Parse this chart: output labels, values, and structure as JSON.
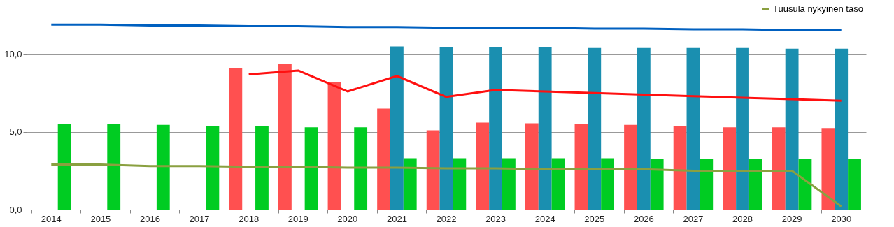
{
  "chart_data": {
    "type": "bar",
    "categories": [
      "2014",
      "2015",
      "2016",
      "2017",
      "2018",
      "2019",
      "2020",
      "2021",
      "2022",
      "2023",
      "2024",
      "2025",
      "2026",
      "2027",
      "2028",
      "2029",
      "2030"
    ],
    "series": [
      {
        "color": "#ff5050",
        "values": [
          null,
          null,
          null,
          null,
          9.1,
          9.4,
          8.2,
          6.5,
          5.1,
          5.6,
          5.55,
          5.5,
          5.45,
          5.4,
          5.3,
          5.3,
          5.25
        ]
      },
      {
        "color": "#1a8fb0",
        "values": [
          null,
          null,
          null,
          null,
          null,
          null,
          null,
          10.5,
          10.45,
          10.45,
          10.45,
          10.4,
          10.4,
          10.4,
          10.4,
          10.35,
          10.35
        ]
      },
      {
        "color": "#00cc22",
        "values": [
          5.5,
          5.5,
          5.45,
          5.4,
          5.35,
          5.3,
          5.3,
          3.3,
          3.3,
          3.3,
          3.3,
          3.3,
          3.25,
          3.25,
          3.25,
          3.25,
          3.25
        ]
      },
      {
        "type": "line",
        "color": "#0060c0",
        "values": [
          11.9,
          11.9,
          11.85,
          11.85,
          11.8,
          11.8,
          11.75,
          11.75,
          11.7,
          11.7,
          11.7,
          11.65,
          11.65,
          11.6,
          11.6,
          11.55,
          11.55
        ]
      },
      {
        "type": "line",
        "color": "#ff1010",
        "values": [
          null,
          null,
          null,
          null,
          8.7,
          8.95,
          7.6,
          8.6,
          7.25,
          7.7,
          7.6,
          7.5,
          7.4,
          7.3,
          7.2,
          7.1,
          7.0
        ]
      },
      {
        "type": "line",
        "name": "Tuusula nykyinen taso",
        "color": "#8aa040",
        "values": [
          2.9,
          2.9,
          2.8,
          2.8,
          2.75,
          2.75,
          2.7,
          2.7,
          2.65,
          2.65,
          2.6,
          2.6,
          2.6,
          2.5,
          2.5,
          2.5,
          0.2
        ]
      }
    ],
    "ylim": [
      0,
      13.4
    ],
    "yticks": [
      {
        "value": 0,
        "label": "0,0"
      },
      {
        "value": 5,
        "label": "5,0"
      },
      {
        "value": 10,
        "label": "10,0"
      }
    ],
    "grid": "y",
    "legend": "top right"
  }
}
